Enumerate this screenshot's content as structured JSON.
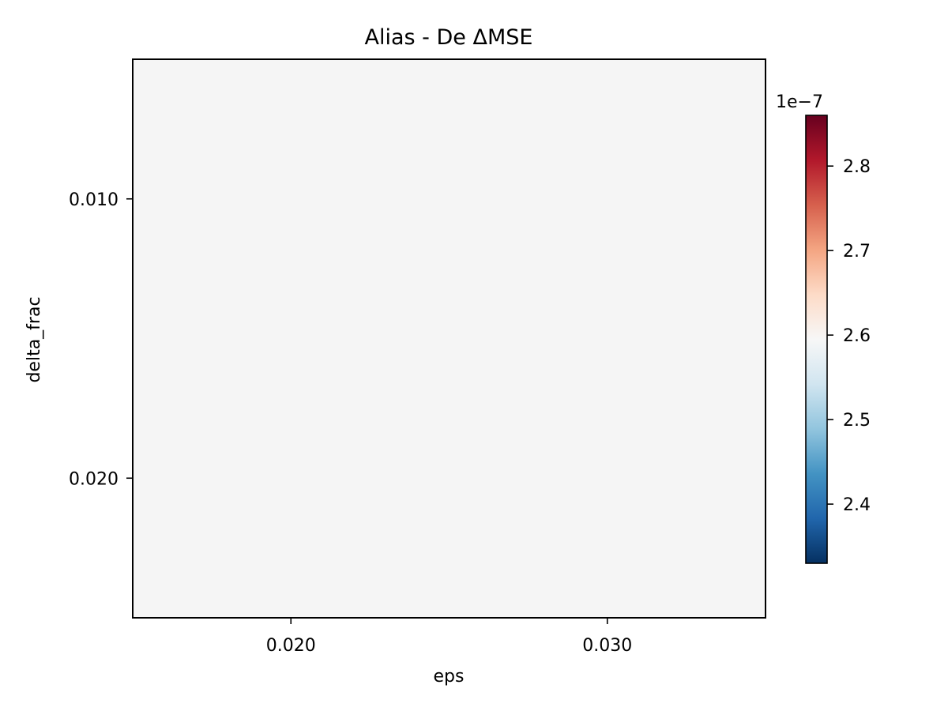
{
  "chart_data": {
    "type": "heatmap",
    "title": "Alias - De ΔMSE",
    "xlabel": "eps",
    "ylabel": "delta_frac",
    "x_categories": [
      "0.020",
      "0.030"
    ],
    "y_categories": [
      "0.010",
      "0.020"
    ],
    "values": [
      [
        2.6e-07,
        2.6e-07
      ],
      [
        2.6e-07,
        2.6e-07
      ]
    ],
    "colorbar": {
      "colormap": "RdBu_r",
      "min": 2.33e-07,
      "max": 2.86e-07,
      "ticks": [
        2.4,
        2.5,
        2.6,
        2.7,
        2.8
      ],
      "tick_labels": [
        "2.4",
        "2.5",
        "2.6",
        "2.7",
        "2.8"
      ],
      "offset_label": "1e−7",
      "scale": 1e-07
    },
    "grid": false,
    "colors": {
      "cell": "#f5f5f5",
      "axis": "#000000"
    }
  }
}
